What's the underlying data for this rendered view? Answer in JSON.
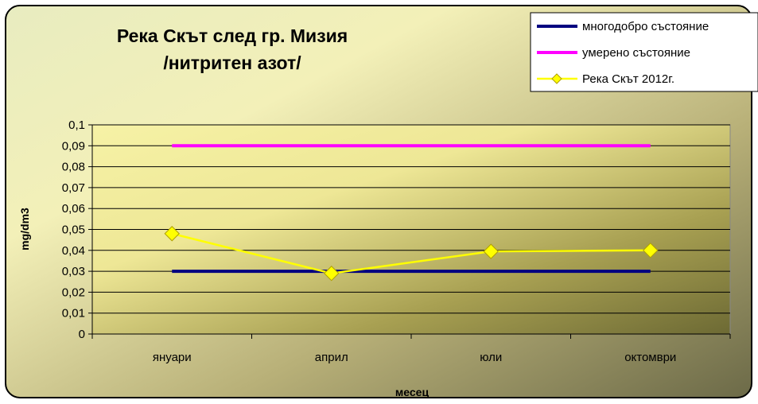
{
  "chart_data": {
    "type": "line",
    "title_line1": "Река Скът след гр. Мизия",
    "title_line2": "/нитритен азот/",
    "xlabel": "месец",
    "ylabel": "mg/dm3",
    "categories": [
      "януари",
      "април",
      "юли",
      "октомври"
    ],
    "ylim": [
      0,
      0.1
    ],
    "yticks": [
      "0",
      "0,01",
      "0,02",
      "0,03",
      "0,04",
      "0,05",
      "0,06",
      "0,07",
      "0,08",
      "0,09",
      "0,1"
    ],
    "grid": true,
    "legend_position": "top-right",
    "series": [
      {
        "name": "многодобро състояние",
        "values": [
          0.03,
          0.03,
          0.03,
          0.03
        ],
        "color": "#000080",
        "marker": "none"
      },
      {
        "name": "умерено състояние",
        "values": [
          0.09,
          0.09,
          0.09,
          0.09
        ],
        "color": "#ff00ff",
        "marker": "none"
      },
      {
        "name": "Река Скът 2012г.",
        "values": [
          0.048,
          0.029,
          0.0395,
          0.04
        ],
        "color": "#ffff00",
        "marker": "diamond"
      }
    ]
  }
}
